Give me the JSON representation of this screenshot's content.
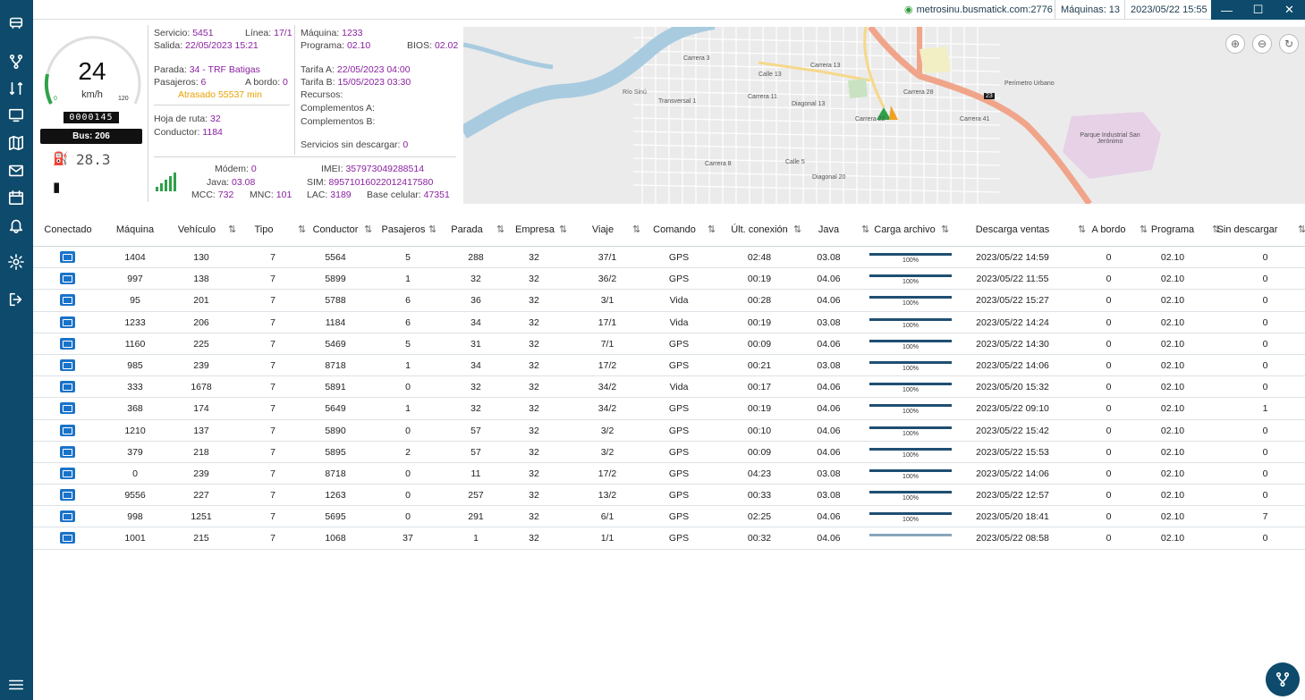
{
  "topbar": {
    "server": "metrosinu.busmatick.com:2776",
    "machines": "Máquinas: 13",
    "datetime": "2023/05/22 15:55"
  },
  "gauge": {
    "speed": "24",
    "unit": "km/h",
    "min": "0",
    "max": "120",
    "odometer": "0000145",
    "bus": "Bus: 206",
    "fuel": "28.3"
  },
  "info": {
    "servicio_label": "Servicio:",
    "servicio": "5451",
    "linea_label": "Línea:",
    "linea": "17/1",
    "salida_label": "Salida:",
    "salida": "22/05/2023 15:21",
    "parada_label": "Parada:",
    "parada": "34 - TRF Batigas",
    "pasajeros_label": "Pasajeros:",
    "pasajeros": "6",
    "abordo_label": "A bordo:",
    "abordo": "0",
    "atrasado": "Atrasado 55537 min",
    "hoja_label": "Hoja de ruta:",
    "hoja": "32",
    "conductor_label": "Conductor:",
    "conductor": "1184",
    "maquina_label": "Máquina:",
    "maquina": "1233",
    "programa_label": "Programa:",
    "programa": "02.10",
    "bios_label": "BIOS:",
    "bios": "02.02",
    "tarifaA_label": "Tarifa A:",
    "tarifaA": "22/05/2023 04:00",
    "tarifaB_label": "Tarifa B:",
    "tarifaB": "15/05/2023 03:30",
    "recursos_label": "Recursos:",
    "compA_label": "Complementos A:",
    "compB_label": "Complementos B:",
    "sinDesc_label": "Servicios sin descargar:",
    "sinDesc": "0",
    "modem_label": "Módem:",
    "modem": "0",
    "java_label": "Java:",
    "java": "03.08",
    "mcc_label": "MCC:",
    "mcc": "732",
    "mnc_label": "MNC:",
    "mnc": "101",
    "imei_label": "IMEI:",
    "imei": "357973049288514",
    "sim_label": "SIM:",
    "sim": "89571016022012417580",
    "lac_label": "LAC:",
    "lac": "3189",
    "base_label": "Base celular:",
    "base": "47351"
  },
  "map": {
    "labels": [
      "Carrera 3",
      "Calle 13",
      "Diagonal 13",
      "Carrera 13",
      "Río Sinú",
      "Transversal 1",
      "Carrera 11",
      "Calle 5",
      "Diagonal 20",
      "Carrera 28",
      "Carrera 22",
      "Carrera 41",
      "Perímetro Urbano",
      "23",
      "Parque Industrial San Jerónimo",
      "Carrera 8"
    ]
  },
  "table": {
    "headers": [
      "Conectado",
      "Máquina",
      "Vehículo",
      "Tipo",
      "Conductor",
      "Pasajeros",
      "Parada",
      "Empresa",
      "Viaje",
      "Comando",
      "Últ. conexión",
      "Java",
      "Carga archivo",
      "Descarga ventas",
      "A bordo",
      "Programa",
      "Sin descargar"
    ],
    "rows": [
      [
        "1404",
        "130",
        "7",
        "5564",
        "5",
        "288",
        "32",
        "37/1",
        "GPS",
        "02:48",
        "03.08",
        "100%",
        "2023/05/22 14:59",
        "0",
        "02.10",
        "0"
      ],
      [
        "997",
        "138",
        "7",
        "5899",
        "1",
        "32",
        "32",
        "36/2",
        "GPS",
        "00:19",
        "04.06",
        "100%",
        "2023/05/22 11:55",
        "0",
        "02.10",
        "0"
      ],
      [
        "95",
        "201",
        "7",
        "5788",
        "6",
        "36",
        "32",
        "3/1",
        "Vida",
        "00:28",
        "04.06",
        "100%",
        "2023/05/22 15:27",
        "0",
        "02.10",
        "0"
      ],
      [
        "1233",
        "206",
        "7",
        "1184",
        "6",
        "34",
        "32",
        "17/1",
        "Vida",
        "00:19",
        "03.08",
        "100%",
        "2023/05/22 14:24",
        "0",
        "02.10",
        "0"
      ],
      [
        "1160",
        "225",
        "7",
        "5469",
        "5",
        "31",
        "32",
        "7/1",
        "GPS",
        "00:09",
        "04.06",
        "100%",
        "2023/05/22 14:30",
        "0",
        "02.10",
        "0"
      ],
      [
        "985",
        "239",
        "7",
        "8718",
        "1",
        "34",
        "32",
        "17/2",
        "GPS",
        "00:21",
        "03.08",
        "100%",
        "2023/05/22 14:06",
        "0",
        "02.10",
        "0"
      ],
      [
        "333",
        "1678",
        "7",
        "5891",
        "0",
        "32",
        "32",
        "34/2",
        "Vida",
        "00:17",
        "04.06",
        "100%",
        "2023/05/20 15:32",
        "0",
        "02.10",
        "0"
      ],
      [
        "368",
        "174",
        "7",
        "5649",
        "1",
        "32",
        "32",
        "34/2",
        "GPS",
        "00:19",
        "04.06",
        "100%",
        "2023/05/22 09:10",
        "0",
        "02.10",
        "1"
      ],
      [
        "1210",
        "137",
        "7",
        "5890",
        "0",
        "57",
        "32",
        "3/2",
        "GPS",
        "00:10",
        "04.06",
        "100%",
        "2023/05/22 15:42",
        "0",
        "02.10",
        "0"
      ],
      [
        "379",
        "218",
        "7",
        "5895",
        "2",
        "57",
        "32",
        "3/2",
        "GPS",
        "00:09",
        "04.06",
        "100%",
        "2023/05/22 15:53",
        "0",
        "02.10",
        "0"
      ],
      [
        "0",
        "239",
        "7",
        "8718",
        "0",
        "11",
        "32",
        "17/2",
        "GPS",
        "04:23",
        "03.08",
        "100%",
        "2023/05/22 14:06",
        "0",
        "02.10",
        "0"
      ],
      [
        "9556",
        "227",
        "7",
        "1263",
        "0",
        "257",
        "32",
        "13/2",
        "GPS",
        "00:33",
        "03.08",
        "100%",
        "2023/05/22 12:57",
        "0",
        "02.10",
        "0"
      ],
      [
        "998",
        "1251",
        "7",
        "5695",
        "0",
        "291",
        "32",
        "6/1",
        "GPS",
        "02:25",
        "04.06",
        "100%",
        "2023/05/20 18:41",
        "0",
        "02.10",
        "7"
      ],
      [
        "1001",
        "215",
        "7",
        "1068",
        "37",
        "1",
        "32",
        "1/1",
        "GPS",
        "00:32",
        "04.06",
        "",
        "2023/05/22 08:58",
        "0",
        "02.10",
        "0"
      ]
    ]
  },
  "colors": {
    "sidebar": "#0d4a6b",
    "accent": "#8a1fa0",
    "warning": "#e8a100",
    "connected": "#1a73c9"
  }
}
